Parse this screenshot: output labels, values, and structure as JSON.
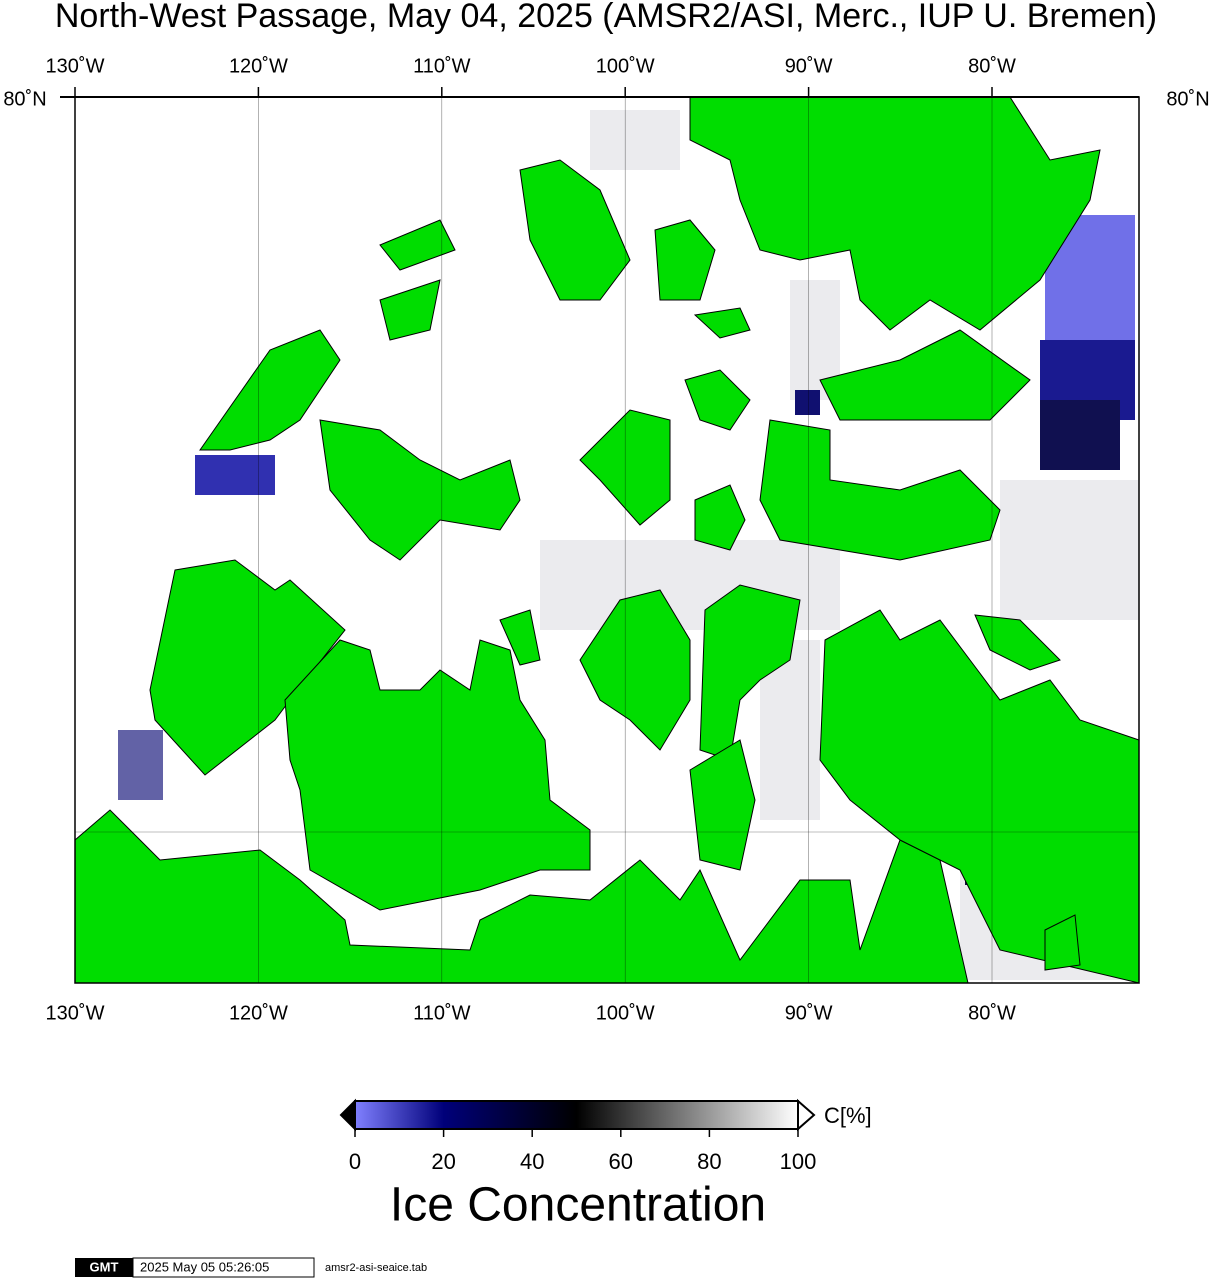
{
  "header": {
    "title": "North-West Passage, May 04, 2025 (AMSR2/ASI, Merc., IUP U. Bremen)"
  },
  "map": {
    "longitude_labels": [
      "130˚W",
      "120˚W",
      "110˚W",
      "100˚W",
      "90˚W",
      "80˚W"
    ],
    "latitude_labels": [
      "80˚N"
    ]
  },
  "colorbar": {
    "unit": "C[%]",
    "title": "Ice Concentration",
    "ticks": [
      0,
      20,
      40,
      60,
      80,
      100
    ]
  },
  "footer": {
    "logo": "GMT",
    "timestamp": "2025 May 05 05:26:05",
    "file": "amsr2-asi-seaice.tab"
  }
}
